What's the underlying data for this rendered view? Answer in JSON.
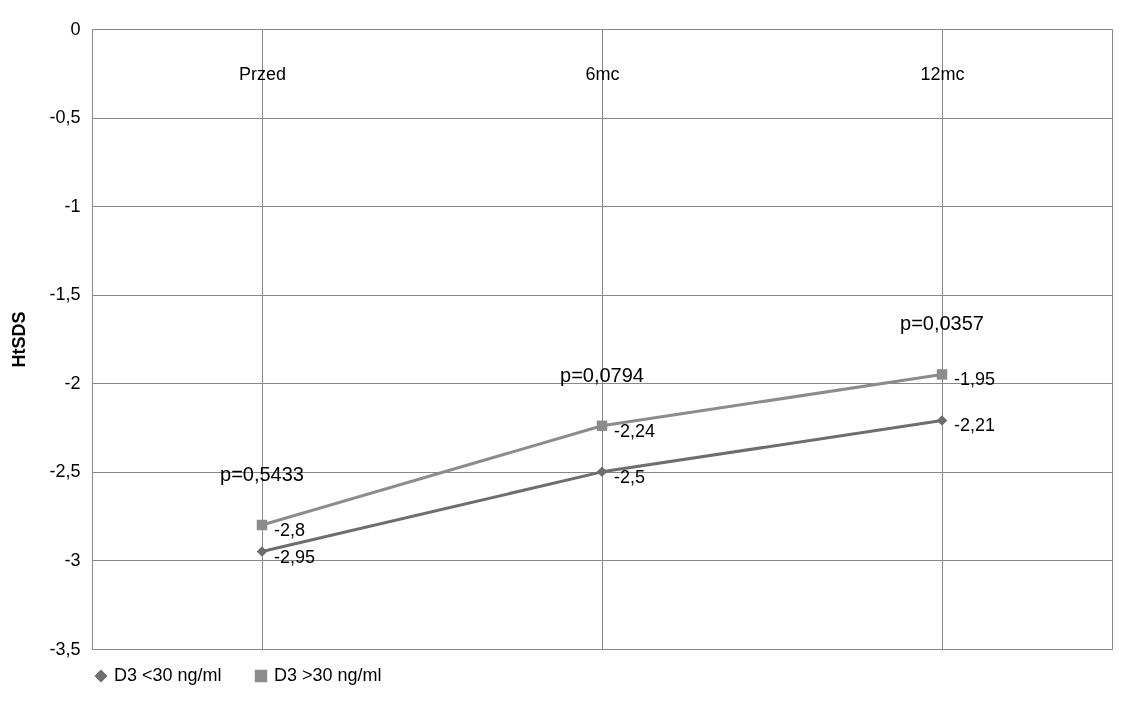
{
  "chart_data": {
    "type": "line",
    "ylabel": "HtSDS",
    "categories": [
      "Przed",
      "6mc",
      "12mc"
    ],
    "series": [
      {
        "name": "D3 <30 ng/ml",
        "color": "#6e6e6e",
        "marker": "diamond",
        "values": [
          -2.95,
          -2.5,
          -2.21
        ],
        "value_labels": [
          "-2,95",
          "-2,5",
          "-2,21"
        ]
      },
      {
        "name": "D3 >30 ng/ml",
        "color": "#8c8c8c",
        "marker": "square",
        "values": [
          -2.8,
          -2.24,
          -1.95
        ],
        "value_labels": [
          "-2,8",
          "-2,24",
          "-1,95"
        ]
      }
    ],
    "ylim": [
      -3.5,
      0
    ],
    "yticks": [
      {
        "value": -3.5,
        "label": "-3,5"
      },
      -3,
      {
        "value": -2.5,
        "label": "-2,5"
      },
      -2,
      {
        "value": -1.5,
        "label": "-1,5"
      },
      -1,
      {
        "value": -0.5,
        "label": "-0,5"
      },
      0
    ],
    "grid": true,
    "legend": "bottom",
    "annotations": [
      "p=0,5433",
      "p=0,0794",
      "p=0,0357"
    ]
  }
}
